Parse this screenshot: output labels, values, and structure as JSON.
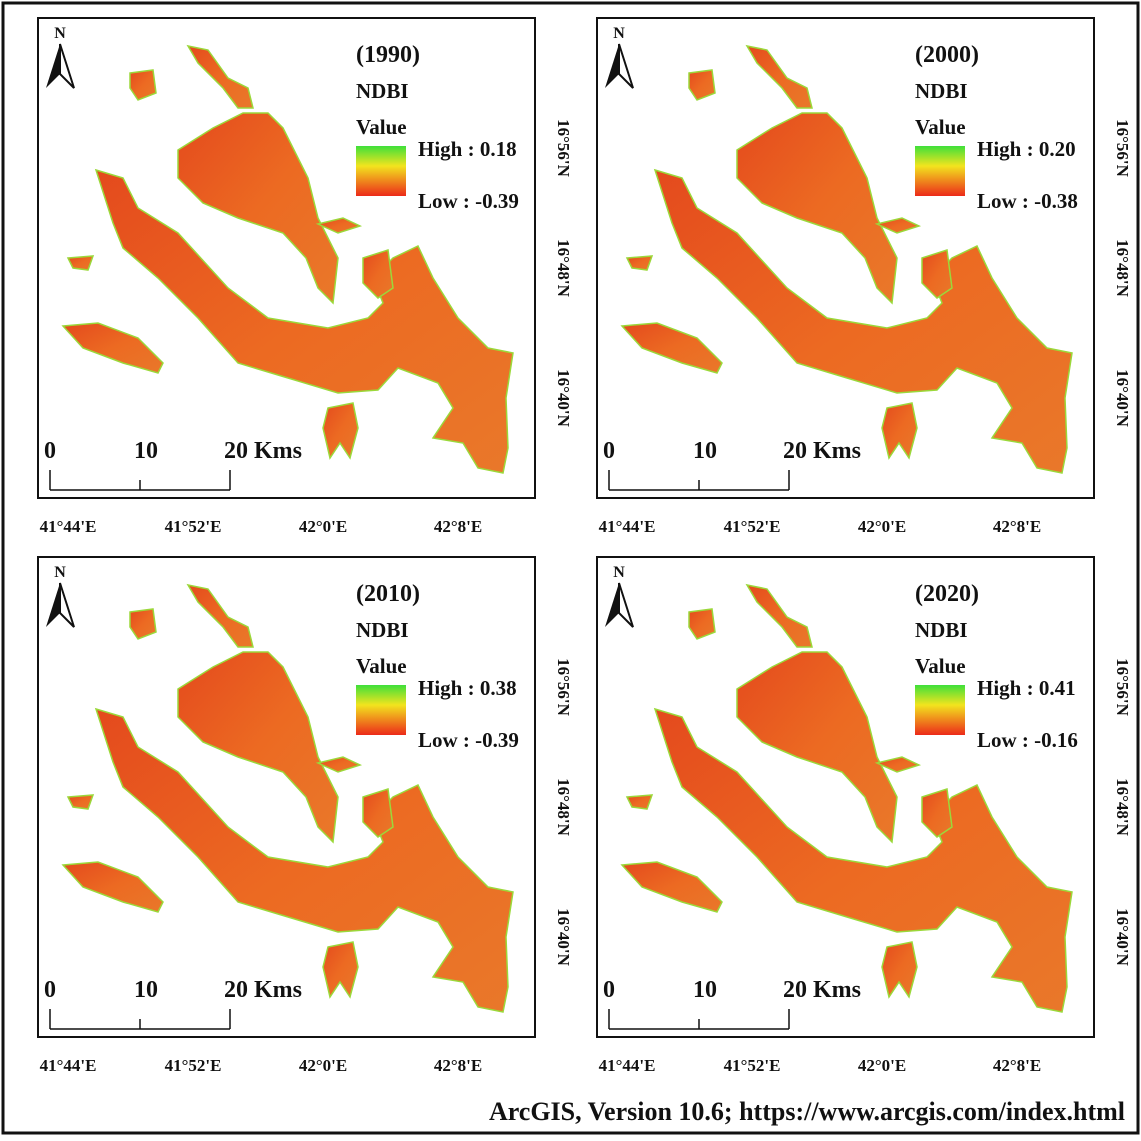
{
  "panels": [
    {
      "year": "(1990)",
      "index": "NDBI",
      "legend_title": "Value",
      "high": "High : 0.18",
      "low": "Low : -0.39",
      "north": "N",
      "scale": [
        "0",
        "10",
        "20 Kms"
      ],
      "lat": [
        "16°56'N",
        "16°48'N",
        "16°40'N"
      ],
      "lon": [
        "41°44'E",
        "41°52'E",
        "42°0'E",
        "42°8'E"
      ]
    },
    {
      "year": "(2000)",
      "index": "NDBI",
      "legend_title": "Value",
      "high": "High : 0.20",
      "low": "Low : -0.38",
      "north": "N",
      "scale": [
        "0",
        "10",
        "20 Kms"
      ],
      "lat": [
        "16°56'N",
        "16°48'N",
        "16°40'N"
      ],
      "lon": [
        "41°44'E",
        "41°52'E",
        "42°0'E",
        "42°8'E"
      ]
    },
    {
      "year": "(2010)",
      "index": "NDBI",
      "legend_title": "Value",
      "high": "High : 0.38",
      "low": "Low : -0.39",
      "north": "N",
      "scale": [
        "0",
        "10",
        "20 Kms"
      ],
      "lat": [
        "16°56'N",
        "16°48'N",
        "16°40'N"
      ],
      "lon": [
        "41°44'E",
        "41°52'E",
        "42°0'E",
        "42°8'E"
      ]
    },
    {
      "year": "(2020)",
      "index": "NDBI",
      "legend_title": "Value",
      "high": "High : 0.41",
      "low": "Low : -0.16",
      "north": "N",
      "scale": [
        "0",
        "10",
        "20 Kms"
      ],
      "lat": [
        "16°56'N",
        "16°48'N",
        "16°40'N"
      ],
      "lon": [
        "41°44'E",
        "41°52'E",
        "42°0'E",
        "42°8'E"
      ]
    }
  ],
  "footer": "ArcGIS, Version 10.6; https://www.arcgis.com/index.html"
}
